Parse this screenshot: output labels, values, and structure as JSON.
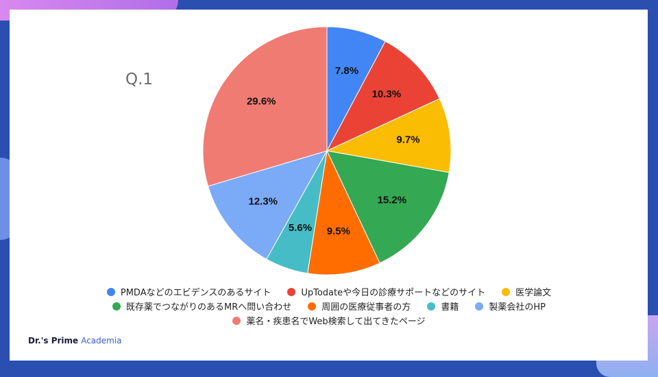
{
  "question": "Q.1",
  "brand": {
    "main": "Dr.'s Prime",
    "sub": "Academia"
  },
  "chart_data": {
    "type": "pie",
    "slices": [
      {
        "label": "PMDAなどのエビデンスのあるサイト",
        "value": 7.8,
        "color": "#4285F4",
        "text": "7.8%"
      },
      {
        "label": "UpTodateや今日の診療サポートなどのサイト",
        "value": 10.3,
        "color": "#EA4335",
        "text": "10.3%"
      },
      {
        "label": "医学論文",
        "value": 9.7,
        "color": "#FBBC04",
        "text": "9.7%"
      },
      {
        "label": "既存薬でつながりのあるMRへ問い合わせ",
        "value": 15.2,
        "color": "#34A853",
        "text": "15.2%"
      },
      {
        "label": "周囲の医療従事者の方",
        "value": 9.5,
        "color": "#FF6D01",
        "text": "9.5%"
      },
      {
        "label": "書籍",
        "value": 5.6,
        "color": "#46BDC6",
        "text": "5.6%"
      },
      {
        "label": "製薬会社のHP",
        "value": 12.3,
        "color": "#7BAAF7",
        "text": "12.3%"
      },
      {
        "label": "薬名・疾患名でWeb検索して出てきたページ",
        "value": 29.6,
        "color": "#F07B72",
        "text": "29.6%"
      }
    ],
    "legend_rows": [
      [
        0,
        1,
        2
      ],
      [
        3,
        4,
        5,
        6
      ],
      [
        7
      ]
    ],
    "legend_position": "bottom"
  }
}
